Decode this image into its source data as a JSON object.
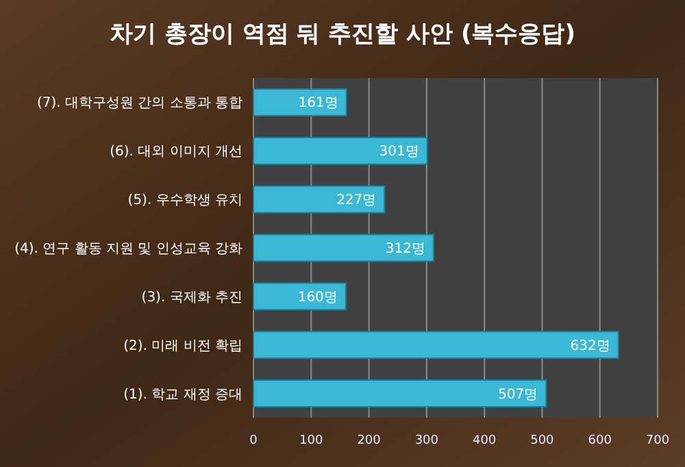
{
  "chart_data": {
    "type": "bar",
    "orientation": "horizontal",
    "title": "차기 총장이 역점 둬 추진할 사안 (복수응답)",
    "categories": [
      "(7). 대학구성원 간의 소통과 통합",
      "(6). 대외 이미지 개선",
      "(5). 우수학생 유치",
      "(4). 연구 활동 지원 및 인성교육 강화",
      "(3). 국제화 추진",
      "(2). 미래 비전 확립",
      "(1). 학교 재정 증대"
    ],
    "values": [
      161,
      301,
      227,
      312,
      160,
      632,
      507
    ],
    "value_labels": [
      "161명",
      "301명",
      "227명",
      "312명",
      "160명",
      "632명",
      "507명"
    ],
    "color": "#3bb8d6",
    "xlim": [
      0,
      700
    ],
    "xticks": [
      0,
      100,
      200,
      300,
      400,
      500,
      600,
      700
    ],
    "grid": "x"
  }
}
